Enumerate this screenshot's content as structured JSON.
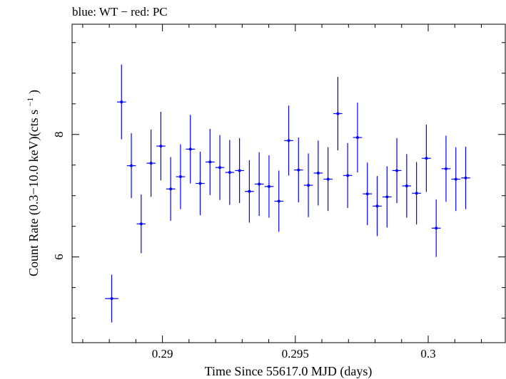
{
  "chart_data": {
    "type": "scatter",
    "title": "blue: WT − red: PC",
    "xlabel": "Time Since 55617.0 MJD (days)",
    "ylabel_main": "Count Rate (0.3−10.0 keV)(cts s",
    "ylabel_superscript": "−1",
    "ylabel_close": ")",
    "xlim": [
      0.2866,
      0.3029
    ],
    "ylim": [
      4.6,
      9.8
    ],
    "x_ticks": [
      0.29,
      0.295,
      0.3
    ],
    "x_tick_labels": [
      "0.29",
      "0.295",
      "0.3"
    ],
    "y_ticks": [
      6,
      8
    ],
    "y_tick_labels": [
      "6",
      "8"
    ],
    "x_minor_step": 0.001,
    "y_minor_step": 0.5,
    "grid": false,
    "series_color": "#0000ff",
    "series": [
      {
        "points": [
          {
            "x": 0.28809,
            "xerr": 0.00025,
            "y": 5.32,
            "yerr": 0.39
          },
          {
            "x": 0.28846,
            "xerr": 0.00017,
            "y": 8.53,
            "yerr": 0.61
          },
          {
            "x": 0.28883,
            "xerr": 0.00017,
            "y": 7.49,
            "yerr": 0.53
          },
          {
            "x": 0.2892,
            "xerr": 0.00017,
            "y": 6.54,
            "yerr": 0.48
          },
          {
            "x": 0.28957,
            "xerr": 0.00017,
            "y": 7.53,
            "yerr": 0.55
          },
          {
            "x": 0.28994,
            "xerr": 0.00017,
            "y": 7.81,
            "yerr": 0.56
          },
          {
            "x": 0.29031,
            "xerr": 0.00017,
            "y": 7.11,
            "yerr": 0.52
          },
          {
            "x": 0.29068,
            "xerr": 0.00017,
            "y": 7.31,
            "yerr": 0.53
          },
          {
            "x": 0.29105,
            "xerr": 0.00017,
            "y": 7.76,
            "yerr": 0.56
          },
          {
            "x": 0.29142,
            "xerr": 0.00017,
            "y": 7.2,
            "yerr": 0.52
          },
          {
            "x": 0.29179,
            "xerr": 0.00017,
            "y": 7.55,
            "yerr": 0.54
          },
          {
            "x": 0.29216,
            "xerr": 0.00017,
            "y": 7.46,
            "yerr": 0.53
          },
          {
            "x": 0.29253,
            "xerr": 0.00017,
            "y": 7.38,
            "yerr": 0.53
          },
          {
            "x": 0.2929,
            "xerr": 0.00017,
            "y": 7.41,
            "yerr": 0.53
          },
          {
            "x": 0.29327,
            "xerr": 0.00017,
            "y": 7.07,
            "yerr": 0.51
          },
          {
            "x": 0.29364,
            "xerr": 0.00017,
            "y": 7.19,
            "yerr": 0.52
          },
          {
            "x": 0.29401,
            "xerr": 0.00017,
            "y": 7.15,
            "yerr": 0.51
          },
          {
            "x": 0.29438,
            "xerr": 0.00017,
            "y": 6.91,
            "yerr": 0.5
          },
          {
            "x": 0.29475,
            "xerr": 0.00017,
            "y": 7.9,
            "yerr": 0.57
          },
          {
            "x": 0.29512,
            "xerr": 0.00017,
            "y": 7.42,
            "yerr": 0.53
          },
          {
            "x": 0.29549,
            "xerr": 0.00017,
            "y": 7.17,
            "yerr": 0.52
          },
          {
            "x": 0.29586,
            "xerr": 0.00017,
            "y": 7.37,
            "yerr": 0.53
          },
          {
            "x": 0.29623,
            "xerr": 0.00017,
            "y": 7.27,
            "yerr": 0.52
          },
          {
            "x": 0.2966,
            "xerr": 0.00017,
            "y": 8.34,
            "yerr": 0.6
          },
          {
            "x": 0.29697,
            "xerr": 0.00017,
            "y": 7.33,
            "yerr": 0.53
          },
          {
            "x": 0.29734,
            "xerr": 0.00017,
            "y": 7.95,
            "yerr": 0.57
          },
          {
            "x": 0.29771,
            "xerr": 0.00017,
            "y": 7.03,
            "yerr": 0.51
          },
          {
            "x": 0.29808,
            "xerr": 0.00017,
            "y": 6.83,
            "yerr": 0.49
          },
          {
            "x": 0.29845,
            "xerr": 0.00017,
            "y": 6.98,
            "yerr": 0.5
          },
          {
            "x": 0.29882,
            "xerr": 0.00017,
            "y": 7.41,
            "yerr": 0.53
          },
          {
            "x": 0.29919,
            "xerr": 0.00017,
            "y": 7.16,
            "yerr": 0.52
          },
          {
            "x": 0.29956,
            "xerr": 0.00017,
            "y": 7.04,
            "yerr": 0.51
          },
          {
            "x": 0.29993,
            "xerr": 0.00017,
            "y": 7.61,
            "yerr": 0.55
          },
          {
            "x": 0.3003,
            "xerr": 0.00017,
            "y": 6.47,
            "yerr": 0.47
          },
          {
            "x": 0.30067,
            "xerr": 0.00017,
            "y": 7.44,
            "yerr": 0.54
          },
          {
            "x": 0.30104,
            "xerr": 0.00017,
            "y": 7.27,
            "yerr": 0.52
          },
          {
            "x": 0.30141,
            "xerr": 0.00017,
            "y": 7.29,
            "yerr": 0.51
          }
        ]
      }
    ]
  }
}
